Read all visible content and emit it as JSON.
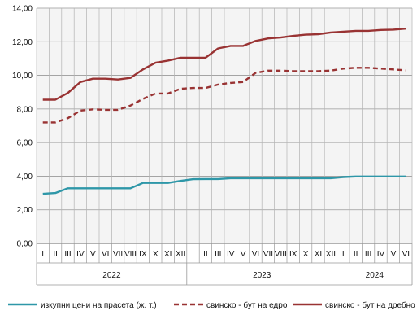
{
  "chart_data": {
    "type": "line",
    "title": "",
    "xlabel": "",
    "ylabel": "",
    "ylim": [
      0,
      14
    ],
    "y_ticks": [
      "0,00",
      "2,00",
      "4,00",
      "6,00",
      "8,00",
      "10,00",
      "12,00",
      "14,00"
    ],
    "grid": true,
    "legend_position": "bottom",
    "categories": [
      "I",
      "II",
      "III",
      "IV",
      "V",
      "VI",
      "VII",
      "VIII",
      "IX",
      "X",
      "XI",
      "XII",
      "I",
      "II",
      "III",
      "IV",
      "V",
      "VI",
      "VII",
      "VIII",
      "IX",
      "X",
      "XI",
      "XII",
      "I",
      "II",
      "III",
      "IV",
      "V",
      "VI"
    ],
    "year_groups": [
      {
        "label": "2022",
        "count": 12
      },
      {
        "label": "2023",
        "count": 12
      },
      {
        "label": "2024",
        "count": 6
      }
    ],
    "series": [
      {
        "name": "изкупни цени на прасета (ж. т.)",
        "color": "#2e97a8",
        "dash": "solid",
        "values": [
          2.95,
          3.0,
          3.28,
          3.28,
          3.28,
          3.28,
          3.28,
          3.28,
          3.6,
          3.6,
          3.6,
          3.72,
          3.82,
          3.83,
          3.83,
          3.88,
          3.88,
          3.88,
          3.88,
          3.88,
          3.88,
          3.88,
          3.88,
          3.88,
          3.95,
          3.98,
          3.98,
          3.98,
          3.98,
          3.98
        ]
      },
      {
        "name": "свинско - бут на едро",
        "color": "#993333",
        "dash": "dashed",
        "values": [
          7.2,
          7.2,
          7.45,
          7.9,
          7.98,
          7.95,
          7.95,
          8.2,
          8.6,
          8.92,
          8.92,
          9.2,
          9.25,
          9.25,
          9.45,
          9.55,
          9.6,
          10.15,
          10.28,
          10.28,
          10.25,
          10.25,
          10.25,
          10.28,
          10.4,
          10.45,
          10.45,
          10.4,
          10.35,
          10.3
        ]
      },
      {
        "name": "свинско - бут на дребно",
        "color": "#993333",
        "dash": "solid",
        "values": [
          8.55,
          8.55,
          8.95,
          9.6,
          9.8,
          9.8,
          9.75,
          9.85,
          10.35,
          10.75,
          10.88,
          11.05,
          11.05,
          11.05,
          11.6,
          11.75,
          11.75,
          12.05,
          12.2,
          12.25,
          12.35,
          12.42,
          12.45,
          12.55,
          12.6,
          12.65,
          12.65,
          12.7,
          12.72,
          12.78
        ]
      }
    ]
  }
}
